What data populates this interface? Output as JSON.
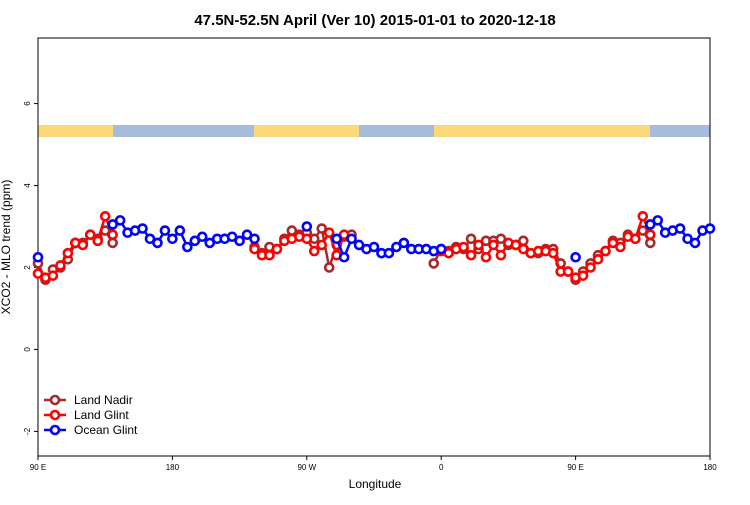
{
  "chart_data": {
    "type": "line",
    "title": "47.5N-52.5N April (Ver 10)   2015-01-01 to 2020-12-18",
    "xlabel": "Longitude",
    "ylabel": "XCO2 - MLO trend (ppm)",
    "x": [
      90,
      95,
      100,
      105,
      110,
      115,
      120,
      125,
      130,
      135,
      140,
      145,
      150,
      155,
      160,
      165,
      170,
      175,
      180,
      185,
      190,
      195,
      200,
      205,
      210,
      215,
      220,
      225,
      230,
      235,
      240,
      245,
      250,
      255,
      260,
      265,
      270,
      275,
      280,
      285,
      290,
      295,
      300,
      305,
      310,
      315,
      320,
      325,
      330,
      335,
      340,
      345,
      350,
      355,
      360,
      365,
      370,
      375,
      380,
      385,
      390,
      395,
      400,
      405,
      410,
      415,
      420,
      425,
      430,
      435,
      440,
      445,
      450,
      455,
      460,
      465,
      470,
      475,
      480,
      485,
      490,
      495,
      500,
      505,
      510,
      515,
      520,
      525,
      530,
      535,
      540
    ],
    "xlim": [
      90,
      540
    ],
    "xticks": [
      {
        "value": 90,
        "label": "90 E"
      },
      180,
      {
        "value": 270,
        "label": "90 W"
      },
      {
        "value": 360,
        "label": "0"
      },
      {
        "value": 450,
        "label": "90 E"
      },
      {
        "value": 540,
        "label": "180"
      }
    ],
    "ylim": [
      -2.6,
      7.6
    ],
    "yticks": [
      -2,
      0,
      2,
      4,
      6
    ],
    "legend": "bottom-left",
    "series": [
      {
        "name": "Land Nadir",
        "color": "#a52a2a",
        "values": [
          2.1,
          1.7,
          1.95,
          2.0,
          2.2,
          2.6,
          2.6,
          2.8,
          2.7,
          2.9,
          2.6,
          null,
          null,
          null,
          null,
          null,
          null,
          null,
          null,
          null,
          null,
          null,
          null,
          null,
          null,
          null,
          null,
          null,
          null,
          2.5,
          2.35,
          2.5,
          2.45,
          2.7,
          2.9,
          2.8,
          2.85,
          2.7,
          2.95,
          2.0,
          2.55,
          2.75,
          2.8,
          null,
          null,
          null,
          null,
          null,
          null,
          null,
          null,
          null,
          null,
          2.1,
          2.45,
          2.4,
          2.5,
          2.45,
          2.7,
          2.45,
          2.65,
          2.65,
          2.7,
          2.55,
          2.55,
          2.65,
          2.35,
          2.35,
          2.45,
          2.45,
          2.1,
          1.9,
          1.7,
          1.9,
          2.1,
          2.3,
          2.4,
          2.65,
          2.6,
          2.8,
          2.7,
          2.9,
          2.6,
          null,
          null,
          null,
          null,
          null,
          null,
          null,
          null
        ]
      },
      {
        "name": "Land Glint",
        "color": "#ff0000",
        "values": [
          1.85,
          1.75,
          1.8,
          2.05,
          2.35,
          2.6,
          2.55,
          2.8,
          2.65,
          3.25,
          2.8,
          null,
          null,
          null,
          null,
          null,
          null,
          null,
          null,
          null,
          null,
          null,
          null,
          null,
          null,
          null,
          null,
          null,
          null,
          2.45,
          2.3,
          2.3,
          2.45,
          2.65,
          2.7,
          2.75,
          2.7,
          2.4,
          2.55,
          2.85,
          2.3,
          2.8,
          null,
          null,
          null,
          null,
          null,
          null,
          null,
          null,
          null,
          null,
          null,
          null,
          2.4,
          2.35,
          2.45,
          2.5,
          2.3,
          2.55,
          2.25,
          2.55,
          2.3,
          2.6,
          2.55,
          2.45,
          2.35,
          2.4,
          2.4,
          2.35,
          1.9,
          1.9,
          1.75,
          1.8,
          2.0,
          2.2,
          2.4,
          2.6,
          2.5,
          2.75,
          2.7,
          3.25,
          2.8,
          null,
          null,
          null,
          null,
          null,
          null,
          null,
          null
        ]
      },
      {
        "name": "Ocean Glint",
        "color": "#0000ff",
        "values": [
          2.25,
          null,
          null,
          null,
          null,
          null,
          null,
          null,
          null,
          null,
          3.05,
          3.15,
          2.85,
          2.9,
          2.95,
          2.7,
          2.6,
          2.9,
          2.7,
          2.9,
          2.5,
          2.65,
          2.75,
          2.6,
          2.7,
          2.7,
          2.75,
          2.65,
          2.8,
          2.7,
          null,
          null,
          null,
          null,
          null,
          null,
          3.0,
          null,
          null,
          null,
          2.7,
          2.25,
          2.7,
          2.55,
          2.45,
          2.5,
          2.35,
          2.35,
          2.5,
          2.6,
          2.45,
          2.45,
          2.45,
          2.4,
          2.45,
          null,
          null,
          null,
          null,
          null,
          null,
          null,
          null,
          null,
          null,
          null,
          null,
          null,
          null,
          null,
          null,
          null,
          2.25,
          null,
          null,
          null,
          null,
          null,
          null,
          null,
          null,
          null,
          3.05,
          3.15,
          2.85,
          2.9,
          2.95,
          2.7,
          2.6,
          2.9,
          2.95
        ]
      }
    ]
  }
}
